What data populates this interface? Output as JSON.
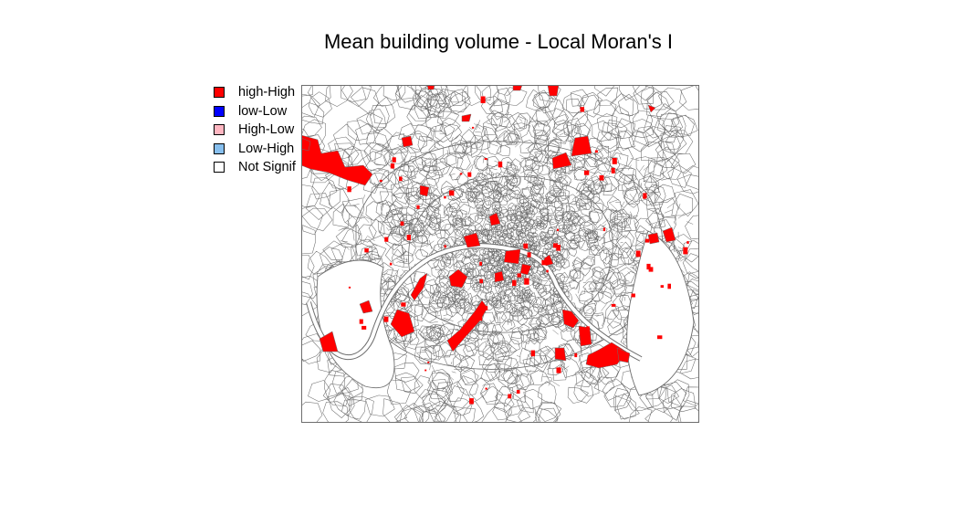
{
  "title": "Mean building volume - Local Moran's I",
  "legend": {
    "items": [
      {
        "label": "high-High",
        "color": "#ff0000"
      },
      {
        "label": "low-Low",
        "color": "#0000ff"
      },
      {
        "label": "High-Low",
        "color": "#ffb6c1"
      },
      {
        "label": "Low-High",
        "color": "#87bfee"
      },
      {
        "label": "Not Signif",
        "color": "#ffffff"
      }
    ]
  },
  "colors": {
    "boundary": "#6e6e6e",
    "significant": "#ff0000",
    "river": "#ffffff"
  }
}
